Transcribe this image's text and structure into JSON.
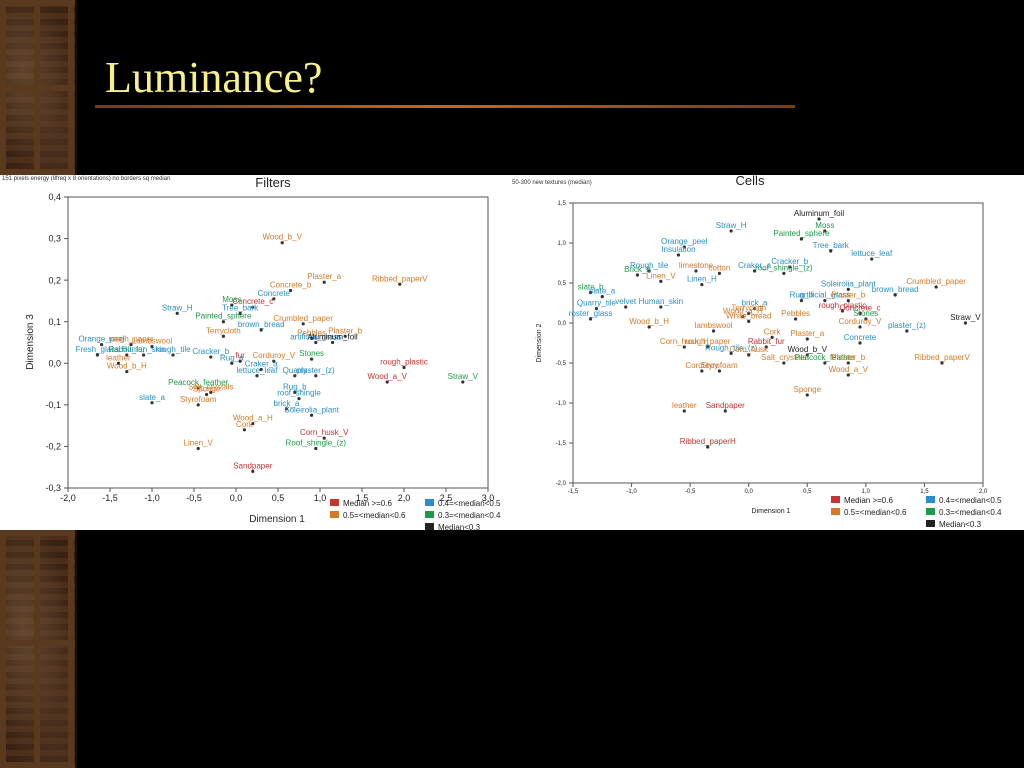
{
  "slide": {
    "title": "Luminance?"
  },
  "legend": [
    {
      "label": "Median >=0.6",
      "color": "#c83232"
    },
    {
      "label": "0.5=<median<0.6",
      "color": "#d77a28"
    },
    {
      "label": "0.4=<median<0.5",
      "color": "#2a8fc8"
    },
    {
      "label": "0.3=<median<0.4",
      "color": "#1f9a4a"
    },
    {
      "label": "Median<0.3",
      "color": "#222222"
    }
  ],
  "chart_data": [
    {
      "type": "scatter",
      "title": "Filters",
      "note": "151 pixels energy (8freq x 8 orientations) no borders  sq median",
      "xlabel": "Dimension 1",
      "ylabel": "Dimension 3",
      "xlim": [
        -2.0,
        3.0
      ],
      "ylim": [
        -0.3,
        0.4
      ],
      "xticks": [
        "-2,0",
        "-1,5",
        "-1,0",
        "-0,5",
        "0,0",
        "0,5",
        "1,0",
        "1,5",
        "2,0",
        "2,5",
        "3,0"
      ],
      "yticks": [
        "0,4",
        "0,3",
        "0,2",
        "0,1",
        "0,0",
        "-0,1",
        "-0,2",
        "-0,3"
      ],
      "points": [
        {
          "label": "Wood_b_V",
          "x": 0.55,
          "y": 0.29,
          "c": 1
        },
        {
          "label": "Plaster_a",
          "x": 1.05,
          "y": 0.195,
          "c": 1
        },
        {
          "label": "Ribbed_paperV",
          "x": 1.95,
          "y": 0.19,
          "c": 1
        },
        {
          "label": "Concrete_b",
          "x": 0.65,
          "y": 0.175,
          "c": 1
        },
        {
          "label": "Concrete",
          "x": 0.45,
          "y": 0.155,
          "c": 2
        },
        {
          "label": "Moss",
          "x": -0.05,
          "y": 0.14,
          "c": 3
        },
        {
          "label": "Concrete_c",
          "x": 0.2,
          "y": 0.135,
          "c": 0
        },
        {
          "label": "Straw_H",
          "x": -0.7,
          "y": 0.12,
          "c": 2
        },
        {
          "label": "Tree_bark",
          "x": 0.05,
          "y": 0.12,
          "c": 2
        },
        {
          "label": "Painted_sphere",
          "x": -0.15,
          "y": 0.1,
          "c": 3
        },
        {
          "label": "Crumbled_paper",
          "x": 0.8,
          "y": 0.095,
          "c": 1
        },
        {
          "label": "brown_bread",
          "x": 0.3,
          "y": 0.08,
          "c": 2
        },
        {
          "label": "Terrycloth",
          "x": -0.15,
          "y": 0.065,
          "c": 1
        },
        {
          "label": "Pebbles",
          "x": 0.9,
          "y": 0.06,
          "c": 1
        },
        {
          "label": "Plaster_b",
          "x": 1.3,
          "y": 0.065,
          "c": 1
        },
        {
          "label": "artificial_grass",
          "x": 0.95,
          "y": 0.05,
          "c": 2
        },
        {
          "label": "Aluminum_foil",
          "x": 1.15,
          "y": 0.05,
          "c": 4
        },
        {
          "label": "Orange_peel",
          "x": -1.6,
          "y": 0.045,
          "c": 2
        },
        {
          "label": "rough_paper",
          "x": -1.25,
          "y": 0.045,
          "c": 1
        },
        {
          "label": "Lambswool",
          "x": -1.0,
          "y": 0.04,
          "c": 1
        },
        {
          "label": "Fresh_glass",
          "x": -1.65,
          "y": 0.02,
          "c": 2
        },
        {
          "label": "Rabbit_fur",
          "x": -1.3,
          "y": 0.02,
          "c": 3
        },
        {
          "label": "Human_skin",
          "x": -1.1,
          "y": 0.02,
          "c": 2
        },
        {
          "label": "rough_tile",
          "x": -0.75,
          "y": 0.02,
          "c": 2
        },
        {
          "label": "Cracker_b",
          "x": -0.3,
          "y": 0.015,
          "c": 2
        },
        {
          "label": "Stones",
          "x": 0.9,
          "y": 0.01,
          "c": 3
        },
        {
          "label": "Corduroy_V",
          "x": 0.45,
          "y": 0.005,
          "c": 1
        },
        {
          "label": "Rug_a",
          "x": -0.05,
          "y": 0.0,
          "c": 2
        },
        {
          "label": "fur",
          "x": 0.05,
          "y": 0.005,
          "c": 0
        },
        {
          "label": "leather",
          "x": -1.4,
          "y": 0.0,
          "c": 1
        },
        {
          "label": "rough_plastic",
          "x": 2.0,
          "y": -0.01,
          "c": 0
        },
        {
          "label": "Wood_b_H",
          "x": -1.3,
          "y": -0.02,
          "c": 1
        },
        {
          "label": "Craker_a",
          "x": 0.3,
          "y": -0.015,
          "c": 2
        },
        {
          "label": "plaster_(z)",
          "x": 0.95,
          "y": -0.03,
          "c": 2
        },
        {
          "label": "lettuce_leaf",
          "x": 0.25,
          "y": -0.03,
          "c": 2
        },
        {
          "label": "Quarry",
          "x": 0.7,
          "y": -0.03,
          "c": 2
        },
        {
          "label": "Straw_V",
          "x": 2.7,
          "y": -0.045,
          "c": 3
        },
        {
          "label": "Wood_a_V",
          "x": 1.8,
          "y": -0.045,
          "c": 0
        },
        {
          "label": "Peacock_feather",
          "x": -0.45,
          "y": -0.06,
          "c": 3
        },
        {
          "label": "Salt_crystals",
          "x": -0.3,
          "y": -0.07,
          "c": 1
        },
        {
          "label": "Sponge",
          "x": -0.35,
          "y": -0.075,
          "c": 1
        },
        {
          "label": "Rug_b",
          "x": 0.7,
          "y": -0.07,
          "c": 2
        },
        {
          "label": "roof_shingle",
          "x": 0.75,
          "y": -0.085,
          "c": 2
        },
        {
          "label": "slate_a",
          "x": -1.0,
          "y": -0.095,
          "c": 2
        },
        {
          "label": "Styrofoam",
          "x": -0.45,
          "y": -0.1,
          "c": 1
        },
        {
          "label": "brick_a",
          "x": 0.6,
          "y": -0.11,
          "c": 2
        },
        {
          "label": "Soleirolia_plant",
          "x": 0.9,
          "y": -0.125,
          "c": 2
        },
        {
          "label": "Wood_a_H",
          "x": 0.2,
          "y": -0.145,
          "c": 1
        },
        {
          "label": "Cork",
          "x": 0.1,
          "y": -0.16,
          "c": 1
        },
        {
          "label": "Corn_husk_V",
          "x": 1.05,
          "y": -0.18,
          "c": 0
        },
        {
          "label": "Linen_V",
          "x": -0.45,
          "y": -0.205,
          "c": 1
        },
        {
          "label": "Roof_shingle_(z)",
          "x": 0.95,
          "y": -0.205,
          "c": 3
        },
        {
          "label": "Sandpaper",
          "x": 0.2,
          "y": -0.26,
          "c": 0
        }
      ]
    },
    {
      "type": "scatter",
      "title": "Cells",
      "note": "50-300 new textures (median)",
      "xlabel": "Dimension 1",
      "ylabel": "Dimension 2",
      "xlim": [
        -1.5,
        2.0
      ],
      "ylim": [
        -2.0,
        1.5
      ],
      "xticks": [
        "-1,5",
        "-1,0",
        "-0,5",
        "0,0",
        "0,5",
        "1,0",
        "1,5",
        "2,0"
      ],
      "yticks": [
        "1,5",
        "1,0",
        "0,5",
        "0,0",
        "-0,5",
        "-1,0",
        "-1,5",
        "-2,0"
      ],
      "points": [
        {
          "label": "Aluminum_foil",
          "x": 0.6,
          "y": 1.3,
          "c": 4
        },
        {
          "label": "Straw_H",
          "x": -0.15,
          "y": 1.15,
          "c": 2
        },
        {
          "label": "Moss",
          "x": 0.65,
          "y": 1.15,
          "c": 3
        },
        {
          "label": "Painted_sphere",
          "x": 0.45,
          "y": 1.05,
          "c": 3
        },
        {
          "label": "Orange_peel",
          "x": -0.55,
          "y": 0.95,
          "c": 2
        },
        {
          "label": "Tree_bark",
          "x": 0.7,
          "y": 0.9,
          "c": 2
        },
        {
          "label": "Insulation",
          "x": -0.6,
          "y": 0.85,
          "c": 2
        },
        {
          "label": "lettuce_leaf",
          "x": 1.05,
          "y": 0.8,
          "c": 2
        },
        {
          "label": "Rough_tile",
          "x": -0.85,
          "y": 0.65,
          "c": 2
        },
        {
          "label": "limestone",
          "x": -0.45,
          "y": 0.65,
          "c": 1
        },
        {
          "label": "Cracker_b",
          "x": 0.35,
          "y": 0.7,
          "c": 2
        },
        {
          "label": "Brick_b",
          "x": -0.95,
          "y": 0.6,
          "c": 3
        },
        {
          "label": "cotton",
          "x": -0.25,
          "y": 0.62,
          "c": 1
        },
        {
          "label": "Craker_a",
          "x": 0.05,
          "y": 0.65,
          "c": 2
        },
        {
          "label": "roof_shingle_(z)",
          "x": 0.3,
          "y": 0.62,
          "c": 3
        },
        {
          "label": "Linen_V",
          "x": -0.75,
          "y": 0.52,
          "c": 1
        },
        {
          "label": "Linen_H",
          "x": -0.4,
          "y": 0.48,
          "c": 2
        },
        {
          "label": "Crumbled_paper",
          "x": 1.6,
          "y": 0.45,
          "c": 1
        },
        {
          "label": "Soleirolia_plant",
          "x": 0.85,
          "y": 0.42,
          "c": 2
        },
        {
          "label": "brown_bread",
          "x": 1.25,
          "y": 0.35,
          "c": 2
        },
        {
          "label": "slate_b",
          "x": -1.35,
          "y": 0.38,
          "c": 3
        },
        {
          "label": "slate_a",
          "x": -1.25,
          "y": 0.33,
          "c": 2
        },
        {
          "label": "Rug_b",
          "x": 0.45,
          "y": 0.28,
          "c": 2
        },
        {
          "label": "artificial_grass",
          "x": 0.65,
          "y": 0.28,
          "c": 2
        },
        {
          "label": "Plaster_b",
          "x": 0.85,
          "y": 0.28,
          "c": 1
        },
        {
          "label": "Quarry_tile",
          "x": -1.3,
          "y": 0.18,
          "c": 2
        },
        {
          "label": "velvet",
          "x": -1.05,
          "y": 0.2,
          "c": 2
        },
        {
          "label": "Human_skin",
          "x": -0.75,
          "y": 0.2,
          "c": 2
        },
        {
          "label": "brick_a",
          "x": 0.05,
          "y": 0.18,
          "c": 2
        },
        {
          "label": "rough_plastic",
          "x": 0.8,
          "y": 0.15,
          "c": 0
        },
        {
          "label": "Concrete_c",
          "x": 0.95,
          "y": 0.12,
          "c": 0
        },
        {
          "label": "Terrycloth",
          "x": 0.0,
          "y": 0.12,
          "c": 1
        },
        {
          "label": "Wood_a_H",
          "x": -0.05,
          "y": 0.08,
          "c": 1
        },
        {
          "label": "Stones",
          "x": 1.0,
          "y": 0.05,
          "c": 3
        },
        {
          "label": "Pebbles",
          "x": 0.4,
          "y": 0.05,
          "c": 1
        },
        {
          "label": "roster_glass",
          "x": -1.35,
          "y": 0.05,
          "c": 2
        },
        {
          "label": "White_bread",
          "x": 0.0,
          "y": 0.02,
          "c": 1
        },
        {
          "label": "Straw_V",
          "x": 1.85,
          "y": 0.0,
          "c": 4
        },
        {
          "label": "Wood_b_H",
          "x": -0.85,
          "y": -0.05,
          "c": 1
        },
        {
          "label": "Corduroy_V",
          "x": 0.95,
          "y": -0.05,
          "c": 1
        },
        {
          "label": "lambswool",
          "x": -0.3,
          "y": -0.1,
          "c": 1
        },
        {
          "label": "plaster_(z)",
          "x": 1.35,
          "y": -0.1,
          "c": 2
        },
        {
          "label": "Cork",
          "x": 0.2,
          "y": -0.18,
          "c": 1
        },
        {
          "label": "Plaster_a",
          "x": 0.5,
          "y": -0.2,
          "c": 1
        },
        {
          "label": "Concrete",
          "x": 0.95,
          "y": -0.25,
          "c": 2
        },
        {
          "label": "Corn_husk_H",
          "x": -0.55,
          "y": -0.3,
          "c": 1
        },
        {
          "label": "rough_paper",
          "x": -0.35,
          "y": -0.3,
          "c": 1
        },
        {
          "label": "Rabbit_fur",
          "x": 0.15,
          "y": -0.3,
          "c": 0
        },
        {
          "label": "Rough_tile_(z)",
          "x": -0.15,
          "y": -0.38,
          "c": 2
        },
        {
          "label": "Corn_husk",
          "x": 0.0,
          "y": -0.4,
          "c": 1
        },
        {
          "label": "Wood_b_V",
          "x": 0.5,
          "y": -0.4,
          "c": 4
        },
        {
          "label": "Ribbed_paperV",
          "x": 1.65,
          "y": -0.5,
          "c": 1
        },
        {
          "label": "Salt_crystals",
          "x": 0.3,
          "y": -0.5,
          "c": 1
        },
        {
          "label": "Peacock_feather",
          "x": 0.65,
          "y": -0.5,
          "c": 3
        },
        {
          "label": "Plaster_b",
          "x": 0.85,
          "y": -0.5,
          "c": 1
        },
        {
          "label": "Corduroy",
          "x": -0.4,
          "y": -0.6,
          "c": 1
        },
        {
          "label": "Styrofoam",
          "x": -0.25,
          "y": -0.6,
          "c": 1
        },
        {
          "label": "Wood_a_V",
          "x": 0.85,
          "y": -0.65,
          "c": 1
        },
        {
          "label": "Sponge",
          "x": 0.5,
          "y": -0.9,
          "c": 1
        },
        {
          "label": "leather",
          "x": -0.55,
          "y": -1.1,
          "c": 1
        },
        {
          "label": "Sandpaper",
          "x": -0.2,
          "y": -1.1,
          "c": 0
        },
        {
          "label": "Ribbed_paperH",
          "x": -0.35,
          "y": -1.55,
          "c": 0
        }
      ]
    }
  ]
}
